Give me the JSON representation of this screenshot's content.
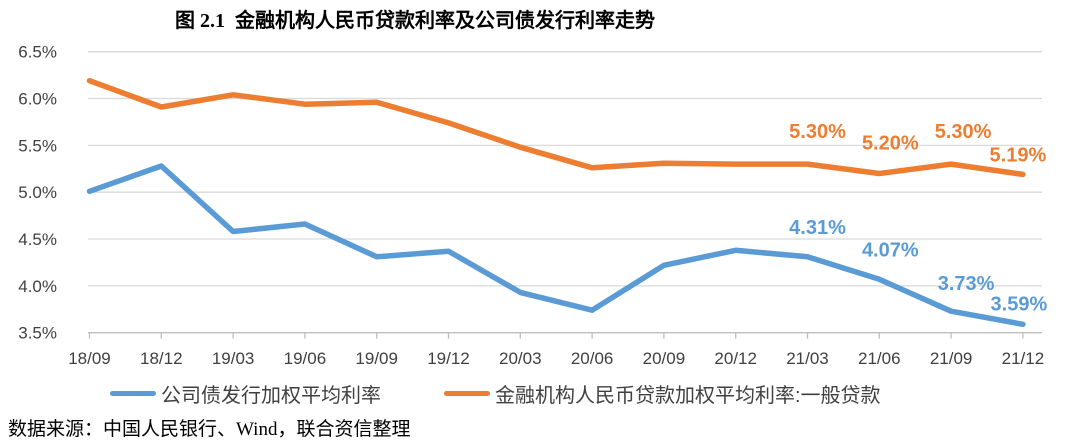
{
  "chart_data": {
    "type": "line",
    "title": "图 2.1  金融机构人民币贷款利率及公司债发行利率走势",
    "categories": [
      "18/09",
      "18/12",
      "19/03",
      "19/06",
      "19/09",
      "19/12",
      "20/03",
      "20/06",
      "20/09",
      "20/12",
      "21/03",
      "21/06",
      "21/09",
      "21/12"
    ],
    "series": [
      {
        "name": "公司债发行加权平均利率",
        "color": "#5B9BD5",
        "values": [
          5.01,
          5.28,
          4.58,
          4.66,
          4.31,
          4.37,
          3.93,
          3.74,
          4.22,
          4.38,
          4.31,
          4.07,
          3.73,
          3.59
        ],
        "point_labels": [
          {
            "index": 10,
            "text": "4.31%",
            "dx": 10,
            "dy": -30
          },
          {
            "index": 11,
            "text": "4.07%",
            "dx": 11,
            "dy": -30
          },
          {
            "index": 12,
            "text": "3.73%",
            "dx": 15,
            "dy": -28
          },
          {
            "index": 13,
            "text": "3.59%",
            "dx": -4,
            "dy": -21
          }
        ]
      },
      {
        "name": "金融机构人民币贷款加权平均利率:一般贷款",
        "color": "#ED7D31",
        "values": [
          6.19,
          5.91,
          6.04,
          5.94,
          5.96,
          5.74,
          5.48,
          5.26,
          5.31,
          5.3,
          5.3,
          5.2,
          5.3,
          5.19
        ],
        "point_labels": [
          {
            "index": 10,
            "text": "5.30%",
            "dx": 10,
            "dy": -33
          },
          {
            "index": 11,
            "text": "5.20%",
            "dx": 11,
            "dy": -31
          },
          {
            "index": 12,
            "text": "5.30%",
            "dx": 12,
            "dy": -33
          },
          {
            "index": 13,
            "text": "5.19%",
            "dx": -5,
            "dy": -20
          }
        ]
      }
    ],
    "ylim": [
      3.5,
      6.5
    ],
    "ytick_step": 0.5,
    "ytick_labels": [
      "3.5%",
      "4.0%",
      "4.5%",
      "5.0%",
      "5.5%",
      "6.0%",
      "6.5%"
    ],
    "grid": true,
    "legend_position": "bottom",
    "source_note": "数据来源：中国人民银行、Wind，联合资信整理",
    "style": {
      "background": "#FFFFFF",
      "gridline": "#D9D9D9",
      "axis_line": "#BFBFBF",
      "axis_text": "#404040"
    }
  }
}
